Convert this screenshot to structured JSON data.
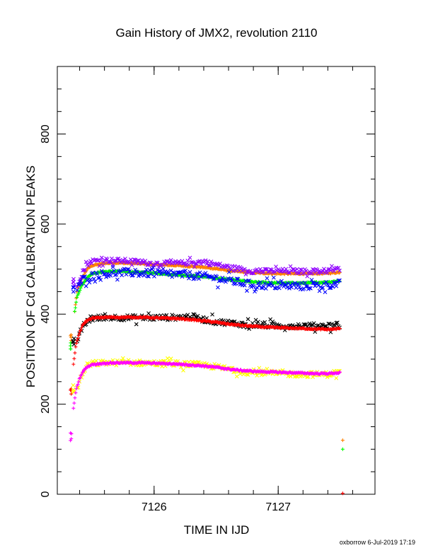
{
  "chart_data": {
    "type": "scatter",
    "title": "Gain History of JMX2, revolution 2110",
    "xlabel": "TIME IN IJD",
    "ylabel": "POSITION OF Cd CALIBRATION PEAKS",
    "xlim": [
      7125.22,
      7127.78
    ],
    "ylim": [
      0,
      950
    ],
    "x_ticks": [
      7126,
      7127
    ],
    "x_tick_labels": [
      "7126",
      "7127"
    ],
    "y_ticks": [
      0,
      200,
      400,
      600,
      800
    ],
    "y_tick_labels": [
      "0",
      "200",
      "400",
      "600",
      "800"
    ],
    "grid": false,
    "legend": "none",
    "footer": "oxborrow  6-Jul-2019 17:19",
    "series": [
      {
        "color": "#ff8000",
        "marker": "+",
        "start": {
          "x": 7125.33,
          "y": 345
        },
        "points": [
          [
            7125.36,
            405
          ],
          [
            7125.38,
            455
          ],
          [
            7125.42,
            480
          ],
          [
            7125.46,
            500
          ],
          [
            7125.5,
            508
          ],
          [
            7125.6,
            513
          ],
          [
            7125.7,
            514
          ],
          [
            7125.8,
            513
          ],
          [
            7125.9,
            512
          ],
          [
            7126.0,
            510
          ],
          [
            7126.1,
            509
          ],
          [
            7126.2,
            508
          ],
          [
            7126.3,
            506
          ],
          [
            7126.4,
            504
          ],
          [
            7126.5,
            501
          ],
          [
            7126.6,
            497
          ],
          [
            7126.7,
            494
          ],
          [
            7126.8,
            492
          ],
          [
            7126.9,
            491
          ],
          [
            7127.0,
            490
          ],
          [
            7127.1,
            490
          ],
          [
            7127.2,
            490
          ],
          [
            7127.3,
            490
          ],
          [
            7127.4,
            491
          ],
          [
            7127.5,
            493
          ]
        ],
        "noise": 1.5,
        "outliers": [
          [
            7127.52,
            120
          ]
        ]
      },
      {
        "color": "#00ff00",
        "marker": "+",
        "start": {
          "x": 7125.33,
          "y": 330
        },
        "points": [
          [
            7125.36,
            405
          ],
          [
            7125.38,
            440
          ],
          [
            7125.42,
            465
          ],
          [
            7125.46,
            482
          ],
          [
            7125.5,
            490
          ],
          [
            7125.6,
            494
          ],
          [
            7125.7,
            495
          ],
          [
            7125.8,
            494
          ],
          [
            7125.9,
            493
          ],
          [
            7126.0,
            491
          ],
          [
            7126.1,
            489
          ],
          [
            7126.2,
            487
          ],
          [
            7126.3,
            485
          ],
          [
            7126.4,
            483
          ],
          [
            7126.5,
            480
          ],
          [
            7126.6,
            477
          ],
          [
            7126.7,
            474
          ],
          [
            7126.8,
            471
          ],
          [
            7126.9,
            470
          ],
          [
            7127.0,
            469
          ],
          [
            7127.1,
            469
          ],
          [
            7127.2,
            469
          ],
          [
            7127.3,
            470
          ],
          [
            7127.4,
            471
          ],
          [
            7127.5,
            474
          ]
        ],
        "noise": 1.5,
        "outliers": [
          [
            7127.52,
            100
          ]
        ]
      },
      {
        "color": "#9000ff",
        "marker": "x",
        "start": {
          "x": 7125.35,
          "y": 470
        },
        "points": [
          [
            7125.38,
            465
          ],
          [
            7125.42,
            490
          ],
          [
            7125.46,
            510
          ],
          [
            7125.5,
            518
          ],
          [
            7125.6,
            520
          ],
          [
            7125.8,
            518
          ],
          [
            7126.0,
            512
          ],
          [
            7126.2,
            513
          ],
          [
            7126.4,
            516
          ],
          [
            7126.5,
            510
          ],
          [
            7126.6,
            504
          ],
          [
            7126.7,
            500
          ],
          [
            7126.8,
            495
          ],
          [
            7127.0,
            496
          ],
          [
            7127.2,
            495
          ],
          [
            7127.4,
            496
          ],
          [
            7127.5,
            500
          ]
        ],
        "noise": 5
      },
      {
        "color": "#0000ff",
        "marker": "x",
        "start": {
          "x": 7125.35,
          "y": 455
        },
        "points": [
          [
            7125.38,
            455
          ],
          [
            7125.42,
            475
          ],
          [
            7125.46,
            482
          ],
          [
            7125.5,
            485
          ],
          [
            7125.6,
            490
          ],
          [
            7125.8,
            492
          ],
          [
            7126.0,
            490
          ],
          [
            7126.2,
            488
          ],
          [
            7126.4,
            484
          ],
          [
            7126.5,
            480
          ],
          [
            7126.6,
            474
          ],
          [
            7126.7,
            470
          ],
          [
            7126.8,
            465
          ],
          [
            7127.0,
            463
          ],
          [
            7127.2,
            462
          ],
          [
            7127.4,
            465
          ],
          [
            7127.5,
            468
          ]
        ],
        "noise": 8
      },
      {
        "color": "#000000",
        "marker": "x",
        "start": {
          "x": 7125.35,
          "y": 340
        },
        "points": [
          [
            7125.38,
            340
          ],
          [
            7125.42,
            370
          ],
          [
            7125.46,
            385
          ],
          [
            7125.5,
            390
          ],
          [
            7125.6,
            393
          ],
          [
            7125.8,
            392
          ],
          [
            7126.0,
            392
          ],
          [
            7126.2,
            393
          ],
          [
            7126.3,
            395
          ],
          [
            7126.4,
            388
          ],
          [
            7126.5,
            383
          ],
          [
            7126.6,
            381
          ],
          [
            7126.7,
            378
          ],
          [
            7126.8,
            376
          ],
          [
            7127.0,
            374
          ],
          [
            7127.2,
            374
          ],
          [
            7127.4,
            374
          ],
          [
            7127.5,
            378
          ]
        ],
        "noise": 6
      },
      {
        "color": "#ff0000",
        "marker": "+",
        "start": {
          "x": 7125.33,
          "y": 225
        },
        "points": [
          [
            7125.35,
            290
          ],
          [
            7125.37,
            330
          ],
          [
            7125.4,
            360
          ],
          [
            7125.43,
            378
          ],
          [
            7125.46,
            386
          ],
          [
            7125.5,
            391
          ],
          [
            7125.6,
            393
          ],
          [
            7125.7,
            393
          ],
          [
            7125.8,
            393
          ],
          [
            7125.9,
            393
          ],
          [
            7126.0,
            392
          ],
          [
            7126.1,
            391
          ],
          [
            7126.2,
            390
          ],
          [
            7126.3,
            388
          ],
          [
            7126.4,
            385
          ],
          [
            7126.5,
            382
          ],
          [
            7126.6,
            378
          ],
          [
            7126.7,
            375
          ],
          [
            7126.8,
            373
          ],
          [
            7126.9,
            371
          ],
          [
            7127.0,
            370
          ],
          [
            7127.1,
            369
          ],
          [
            7127.2,
            368
          ],
          [
            7127.3,
            367
          ],
          [
            7127.4,
            366
          ],
          [
            7127.5,
            368
          ]
        ],
        "noise": 1.5,
        "outliers": [
          [
            7127.52,
            2
          ]
        ]
      },
      {
        "color": "#ffff00",
        "marker": "x",
        "start": {
          "x": 7125.35,
          "y": 235
        },
        "points": [
          [
            7125.38,
            235
          ],
          [
            7125.42,
            265
          ],
          [
            7125.46,
            283
          ],
          [
            7125.5,
            290
          ],
          [
            7125.6,
            292
          ],
          [
            7125.8,
            292
          ],
          [
            7126.0,
            291
          ],
          [
            7126.2,
            290
          ],
          [
            7126.4,
            287
          ],
          [
            7126.5,
            283
          ],
          [
            7126.6,
            278
          ],
          [
            7126.7,
            273
          ],
          [
            7126.8,
            270
          ],
          [
            7127.0,
            268
          ],
          [
            7127.2,
            266
          ],
          [
            7127.4,
            266
          ],
          [
            7127.5,
            272
          ]
        ],
        "noise": 6
      },
      {
        "color": "#ff00ff",
        "marker": "+",
        "start": {
          "x": 7125.33,
          "y": 128
        },
        "points": [
          [
            7125.35,
            190
          ],
          [
            7125.37,
            230
          ],
          [
            7125.4,
            258
          ],
          [
            7125.43,
            274
          ],
          [
            7125.46,
            283
          ],
          [
            7125.5,
            288
          ],
          [
            7125.6,
            291
          ],
          [
            7125.7,
            292
          ],
          [
            7125.8,
            292
          ],
          [
            7125.9,
            292
          ],
          [
            7126.0,
            291
          ],
          [
            7126.1,
            290
          ],
          [
            7126.2,
            289
          ],
          [
            7126.3,
            287
          ],
          [
            7126.4,
            285
          ],
          [
            7126.5,
            282
          ],
          [
            7126.6,
            278
          ],
          [
            7126.7,
            275
          ],
          [
            7126.8,
            273
          ],
          [
            7126.9,
            272
          ],
          [
            7127.0,
            271
          ],
          [
            7127.1,
            270
          ],
          [
            7127.2,
            269
          ],
          [
            7127.3,
            268
          ],
          [
            7127.4,
            268
          ],
          [
            7127.5,
            270
          ]
        ],
        "noise": 1.5
      }
    ]
  }
}
